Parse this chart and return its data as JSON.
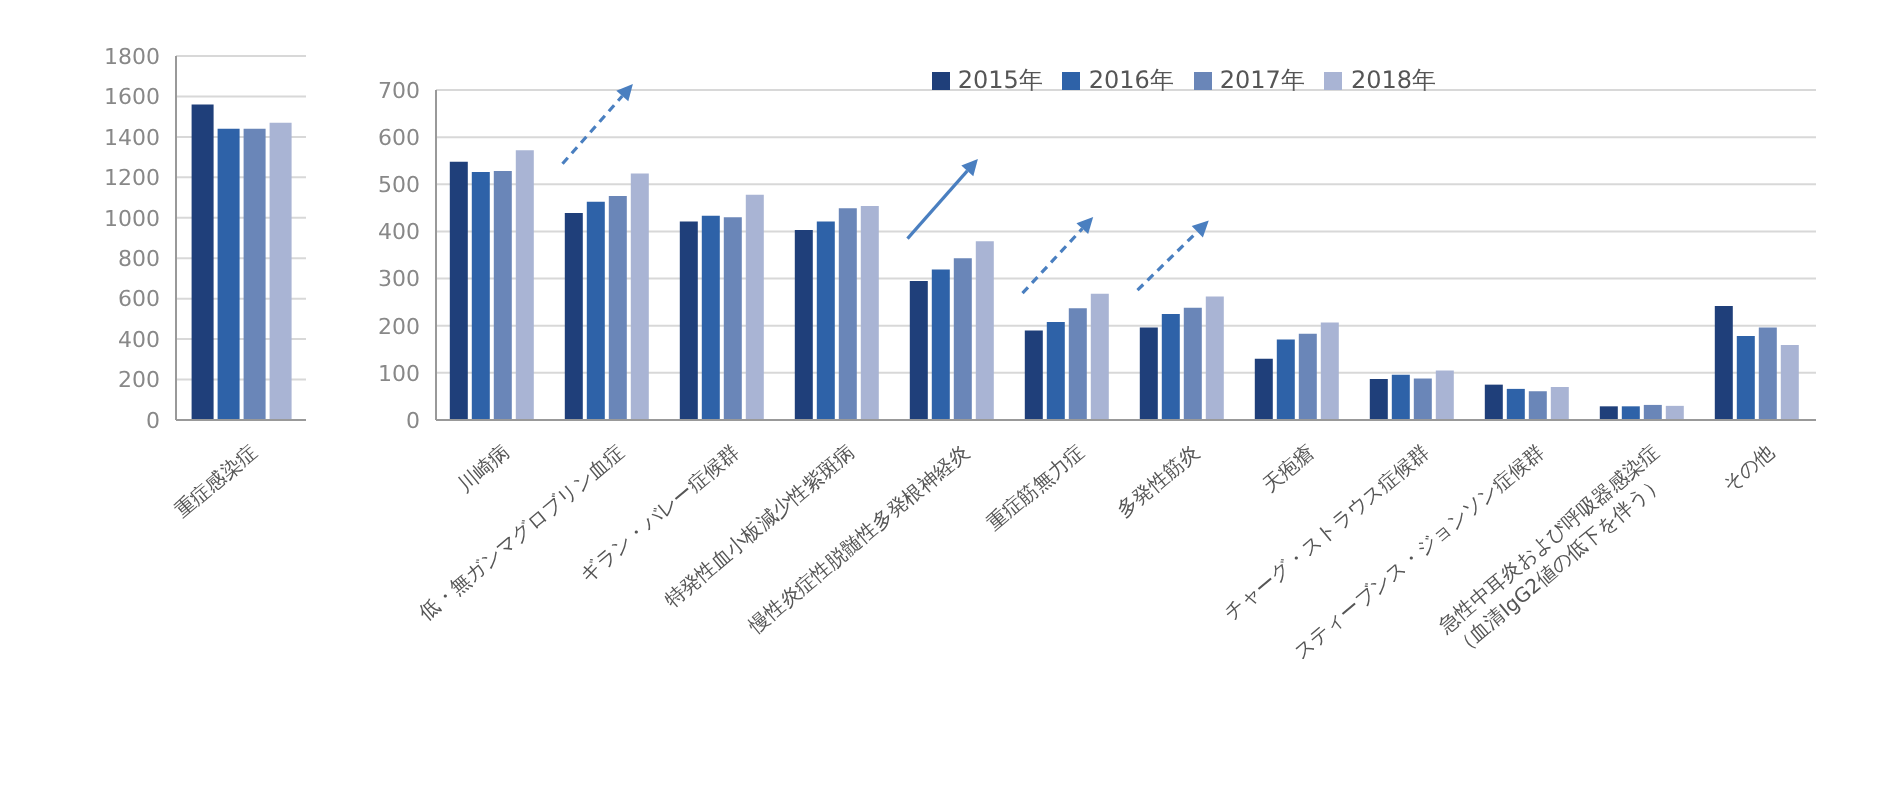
{
  "chart_data": [
    {
      "type": "bar",
      "categories": [
        "重症感染症"
      ],
      "ylim": [
        0,
        1800
      ],
      "yticks": [
        0,
        200,
        400,
        600,
        800,
        1000,
        1200,
        1400,
        1600,
        1800
      ],
      "grid": "y",
      "legend": false,
      "series": [
        {
          "color": "#1f3f7a",
          "values": [
            1560
          ]
        },
        {
          "color": "#2e62a8",
          "values": [
            1440
          ]
        },
        {
          "color": "#6a86b8",
          "values": [
            1440
          ]
        },
        {
          "color": "#a9b4d4",
          "values": [
            1470
          ]
        }
      ]
    },
    {
      "type": "bar",
      "categories": [
        "川崎病",
        "低・無ガンマグロブリン血症",
        "ギラン・バレー症候群",
        "特発性血小板減少性紫斑病",
        "慢性炎症性脱髄性多発根神経炎",
        "重症筋無力症",
        "多発性筋炎",
        "天疱瘡",
        "チャーグ・ストラウス症候群",
        "スティーブンス・ジョンソン症候群",
        "急性中耳炎および呼吸器感染症\n（血清IgG2値の低下を伴う）",
        "その他"
      ],
      "ylim": [
        0,
        700
      ],
      "yticks": [
        0,
        100,
        200,
        300,
        400,
        500,
        600,
        700
      ],
      "grid": "y",
      "legend": "top right",
      "series": [
        {
          "name": "2015年",
          "color": "#1f3f7a",
          "values": [
            548,
            439,
            421,
            403,
            295,
            190,
            196,
            130,
            87,
            75,
            29,
            242
          ]
        },
        {
          "name": "2016年",
          "color": "#2e62a8",
          "values": [
            526,
            463,
            433,
            421,
            319,
            208,
            225,
            171,
            96,
            66,
            29,
            178
          ]
        },
        {
          "name": "2017年",
          "color": "#6a86b8",
          "values": [
            528,
            475,
            430,
            449,
            343,
            237,
            238,
            183,
            88,
            61,
            32,
            196
          ]
        },
        {
          "name": "2018年",
          "color": "#a9b4d4",
          "values": [
            572,
            523,
            478,
            454,
            379,
            268,
            262,
            207,
            105,
            70,
            30,
            159
          ]
        }
      ]
    }
  ]
}
